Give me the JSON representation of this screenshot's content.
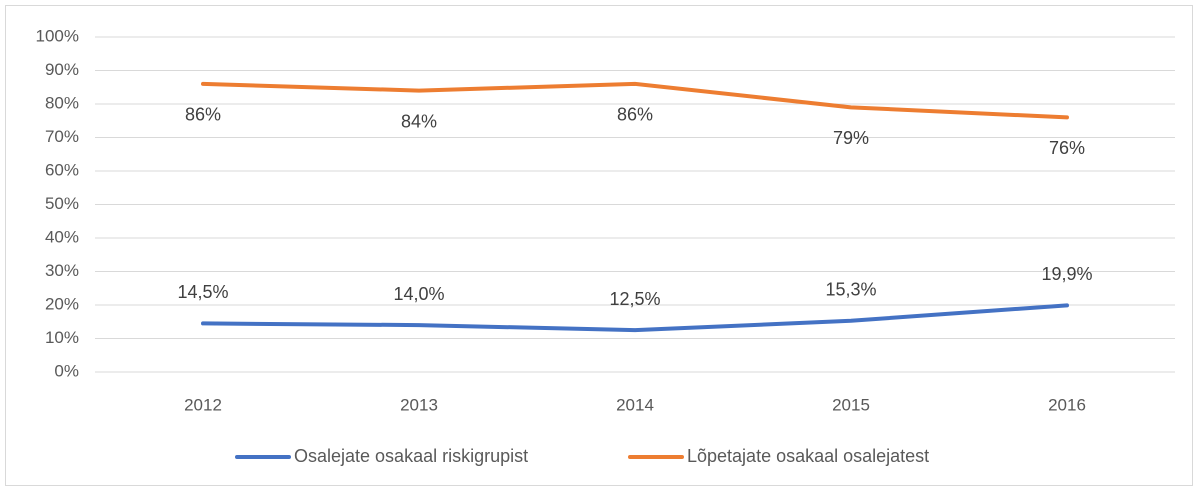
{
  "chart_data": {
    "type": "line",
    "categories": [
      "2012",
      "2013",
      "2014",
      "2015",
      "2016"
    ],
    "series": [
      {
        "name": "Osalejate osakaal riskigrupist",
        "color": "#4472c4",
        "values": [
          14.5,
          14.0,
          12.5,
          15.3,
          19.9
        ],
        "value_labels": [
          "14,5%",
          "14,0%",
          "12,5%",
          "15,3%",
          "19,9%"
        ]
      },
      {
        "name": "Lõpetajate osakaal osalejatest",
        "color": "#ed7d31",
        "values": [
          86,
          84,
          86,
          79,
          76
        ],
        "value_labels": [
          "86%",
          "84%",
          "86%",
          "79%",
          "76%"
        ]
      }
    ],
    "ylim": [
      0,
      100
    ],
    "yticks": [
      {
        "value": 0,
        "label": "0%"
      },
      {
        "value": 10,
        "label": "10%"
      },
      {
        "value": 20,
        "label": "20%"
      },
      {
        "value": 30,
        "label": "30%"
      },
      {
        "value": 40,
        "label": "40%"
      },
      {
        "value": 50,
        "label": "50%"
      },
      {
        "value": 60,
        "label": "60%"
      },
      {
        "value": 70,
        "label": "70%"
      },
      {
        "value": 80,
        "label": "80%"
      },
      {
        "value": 90,
        "label": "90%"
      },
      {
        "value": 100,
        "label": "100%"
      }
    ],
    "grid": true,
    "legend": "bottom"
  }
}
